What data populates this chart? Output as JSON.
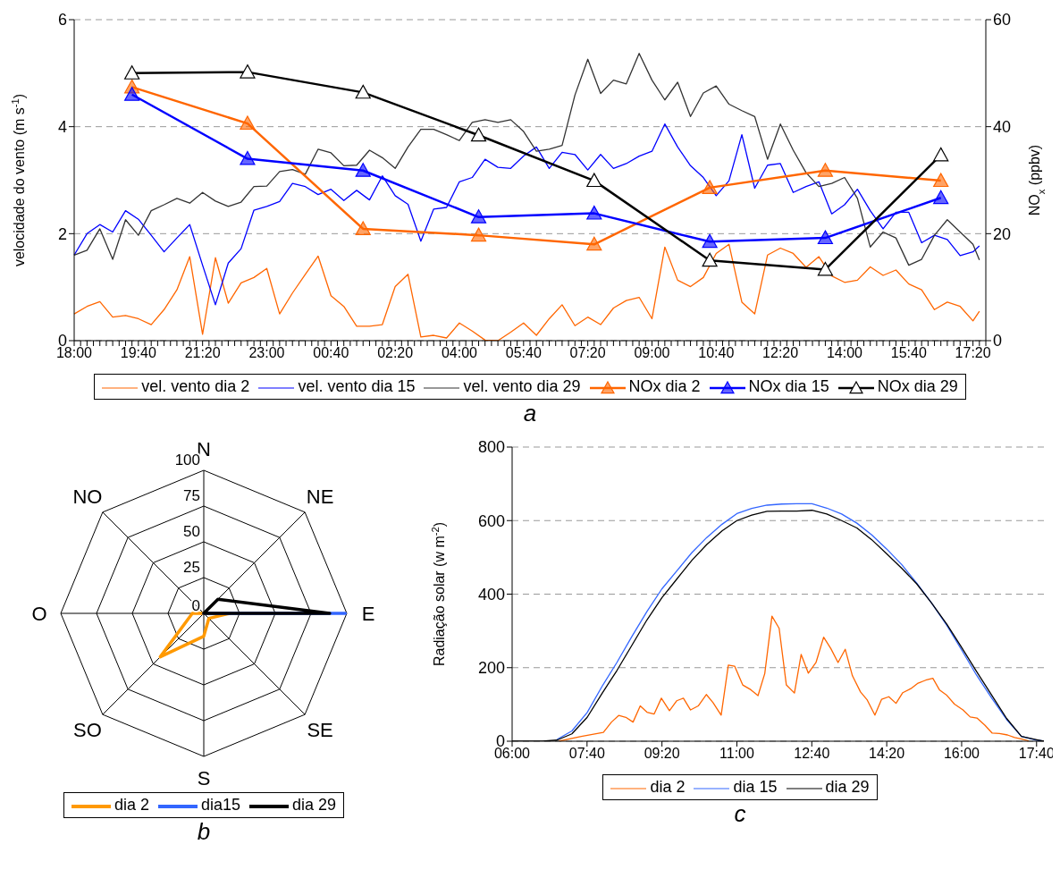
{
  "chart_data": [
    {
      "type": "line",
      "ylabel": "velocidade do vento (m s$^{-1}$)",
      "y2label": "NO$_{x}$ (ppbv)",
      "annotations": [
        "a"
      ],
      "categories": [
        "18:00",
        null,
        null,
        null,
        null,
        null,
        null,
        null,
        null,
        null,
        "19:40",
        null,
        null,
        null,
        null,
        null,
        null,
        null,
        null,
        null,
        "21:20",
        null,
        null,
        null,
        null,
        null,
        null,
        null,
        null,
        null,
        "23:00",
        null,
        null,
        null,
        null,
        null,
        null,
        null,
        null,
        null,
        "00:40",
        null,
        null,
        null,
        null,
        null,
        null,
        null,
        null,
        null,
        "02:20",
        null,
        null,
        null,
        null,
        null,
        null,
        null,
        null,
        null,
        "04:00",
        null,
        null,
        null,
        null,
        null,
        null,
        null,
        null,
        null,
        "05:40",
        null,
        null,
        null,
        null,
        null,
        null,
        null,
        null,
        null,
        "07:20",
        null,
        null,
        null,
        null,
        null,
        null,
        null,
        null,
        null,
        "09:00",
        null,
        null,
        null,
        null,
        null,
        null,
        null,
        null,
        null,
        "10:40",
        null,
        null,
        null,
        null,
        null,
        null,
        null,
        null,
        null,
        "12:20",
        null,
        null,
        null,
        null,
        null,
        null,
        null,
        null,
        null,
        "14:00",
        null,
        null,
        null,
        null,
        null,
        null,
        null,
        null,
        null,
        "15:40",
        null,
        null,
        null,
        null,
        null,
        null,
        null,
        null,
        null,
        "17:20",
        null,
        null
      ],
      "series": [
        {
          "name": "vel. vento dia 2",
          "color": "#ff6600",
          "values": [
            0.5,
            null,
            0.64,
            null,
            0.73,
            null,
            0.44,
            null,
            0.47,
            null,
            0.41,
            null,
            0.3,
            null,
            0.58,
            null,
            0.95,
            null,
            1.57,
            null,
            0.12,
            null,
            1.55,
            null,
            0.7,
            null,
            1.08,
            null,
            1.18,
            null,
            1.35,
            null,
            0.5,
            null,
            0.89,
            null,
            1.24,
            null,
            1.58,
            null,
            0.84,
            null,
            0.64,
            null,
            0.27,
            null,
            0.27,
            null,
            0.3,
            null,
            1.01,
            null,
            1.24,
            null,
            0.07,
            null,
            0.1,
            null,
            0.05,
            null,
            0.33,
            null,
            0.18,
            null,
            0.01,
            null,
            0,
            null,
            0.16,
            null,
            0.33,
            null,
            0.1,
            null,
            0.41,
            null,
            0.67,
            null,
            0.28,
            null,
            0.44,
            null,
            0.3,
            null,
            0.61,
            null,
            0.75,
            null,
            0.81,
            null,
            0.41,
            null,
            1.75,
            null,
            1.13,
            null,
            1.01,
            null,
            1.18,
            null,
            1.63,
            null,
            1.8,
            null,
            0.72,
            null,
            0.5,
            null,
            1.6,
            null,
            1.73,
            null,
            1.63,
            null,
            1.37,
            null,
            1.57,
            null,
            1.21,
            null,
            1.09,
            null,
            1.13,
            null,
            1.38,
            null,
            1.22,
            null,
            1.32,
            null,
            1.06,
            null,
            0.95,
            null,
            0.58,
            null,
            0.72,
            null,
            0.64,
            null,
            0.37,
            0.55,
            null
          ]
        },
        {
          "name": "vel. vento dia 15",
          "color": "#0000ff",
          "values": [
            1.6,
            null,
            2,
            null,
            2.17,
            null,
            2.03,
            null,
            2.43,
            null,
            2.27,
            null,
            1.97,
            null,
            1.66,
            null,
            1.92,
            null,
            2.17,
            null,
            1.41,
            null,
            0.67,
            null,
            1.45,
            null,
            1.72,
            null,
            2.44,
            null,
            2.51,
            null,
            2.6,
            null,
            2.94,
            null,
            2.88,
            null,
            2.73,
            null,
            2.83,
            null,
            2.62,
            null,
            2.81,
            null,
            2.63,
            null,
            3.08,
            null,
            2.71,
            null,
            2.55,
            null,
            1.86,
            null,
            2.46,
            null,
            2.49,
            null,
            2.97,
            null,
            3.05,
            null,
            3.39,
            null,
            3.24,
            null,
            3.22,
            null,
            3.45,
            null,
            3.62,
            null,
            3.22,
            null,
            3.52,
            null,
            3.48,
            null,
            3.19,
            null,
            3.48,
            null,
            3.22,
            null,
            3.31,
            null,
            3.45,
            null,
            3.54,
            null,
            4.05,
            null,
            3.62,
            null,
            3.27,
            null,
            3.05,
            null,
            2.71,
            null,
            2.99,
            null,
            3.85,
            null,
            2.85,
            null,
            3.28,
            null,
            3.31,
            null,
            2.77,
            null,
            2.88,
            null,
            2.97,
            null,
            2.37,
            null,
            2.54,
            null,
            2.83,
            null,
            2.43,
            null,
            2.09,
            null,
            2.4,
            null,
            2.4,
            null,
            1.83,
            null,
            1.97,
            null,
            1.89,
            null,
            1.59,
            null,
            1.66,
            1.77,
            null
          ]
        },
        {
          "name": "vel. vento dia 29",
          "color": "#333333",
          "values": [
            1.6,
            null,
            1.69,
            null,
            2.09,
            null,
            1.52,
            null,
            2.26,
            null,
            1.97,
            null,
            2.43,
            null,
            2.54,
            null,
            2.66,
            null,
            2.57,
            null,
            2.77,
            null,
            2.61,
            null,
            2.51,
            null,
            2.59,
            null,
            2.88,
            null,
            2.89,
            null,
            3.16,
            null,
            3.2,
            null,
            3.11,
            null,
            3.58,
            null,
            3.51,
            null,
            3.27,
            null,
            3.28,
            null,
            3.56,
            null,
            3.42,
            null,
            3.22,
            null,
            3.62,
            null,
            3.95,
            null,
            3.95,
            null,
            3.85,
            null,
            3.74,
            null,
            4.08,
            null,
            4.13,
            null,
            4.08,
            null,
            4.13,
            null,
            3.91,
            null,
            3.54,
            null,
            3.58,
            null,
            3.65,
            null,
            4.59,
            null,
            5.26,
            null,
            4.62,
            null,
            4.87,
            null,
            4.8,
            null,
            5.37,
            null,
            4.87,
            null,
            4.5,
            null,
            4.83,
            null,
            4.19,
            null,
            4.63,
            null,
            4.76,
            null,
            4.42,
            null,
            4.3,
            null,
            4.19,
            null,
            3.39,
            null,
            4.05,
            null,
            3.56,
            null,
            3.14,
            null,
            2.88,
            null,
            2.94,
            null,
            3.05,
            null,
            2.66,
            null,
            1.75,
            null,
            2.03,
            null,
            1.92,
            null,
            1.41,
            null,
            1.52,
            null,
            1.97,
            null,
            2.26,
            null,
            2.03,
            null,
            1.8,
            1.51,
            null
          ]
        },
        {
          "name": "NOx dia 2",
          "color": "#ff6600",
          "axis": "y2",
          "marker": "triangle",
          "values": [
            null,
            null,
            null,
            null,
            null,
            null,
            null,
            null,
            null,
            47.4,
            null,
            null,
            null,
            null,
            null,
            null,
            null,
            null,
            null,
            null,
            null,
            null,
            null,
            null,
            null,
            null,
            null,
            40.6,
            null,
            null,
            null,
            null,
            null,
            null,
            null,
            null,
            null,
            null,
            null,
            null,
            null,
            null,
            null,
            null,
            null,
            20.9,
            null,
            null,
            null,
            null,
            null,
            null,
            null,
            null,
            null,
            null,
            null,
            null,
            null,
            null,
            null,
            null,
            null,
            19.7,
            null,
            null,
            null,
            null,
            null,
            null,
            null,
            null,
            null,
            null,
            null,
            null,
            null,
            null,
            null,
            null,
            null,
            18,
            null,
            null,
            null,
            null,
            null,
            null,
            null,
            null,
            null,
            null,
            null,
            null,
            null,
            null,
            null,
            null,
            null,
            28.6,
            null,
            null,
            null,
            null,
            null,
            null,
            null,
            null,
            null,
            null,
            null,
            null,
            null,
            null,
            null,
            null,
            null,
            31.8,
            null,
            null,
            null,
            null,
            null,
            null,
            null,
            null,
            null,
            null,
            null,
            null,
            null,
            null,
            null,
            null,
            null,
            29.9,
            null,
            null,
            null,
            null,
            null,
            null,
            null
          ]
        },
        {
          "name": "NOx dia 15",
          "color": "#0000ff",
          "axis": "y2",
          "marker": "triangle",
          "values": [
            null,
            null,
            null,
            null,
            null,
            null,
            null,
            null,
            null,
            46,
            null,
            null,
            null,
            null,
            null,
            null,
            null,
            null,
            null,
            null,
            null,
            null,
            null,
            null,
            null,
            null,
            null,
            34,
            null,
            null,
            null,
            null,
            null,
            null,
            null,
            null,
            null,
            null,
            null,
            null,
            null,
            null,
            null,
            null,
            null,
            31.8,
            null,
            null,
            null,
            null,
            null,
            null,
            null,
            null,
            null,
            null,
            null,
            null,
            null,
            null,
            null,
            null,
            null,
            23.1,
            null,
            null,
            null,
            null,
            null,
            null,
            null,
            null,
            null,
            null,
            null,
            null,
            null,
            null,
            null,
            null,
            null,
            23.8,
            null,
            null,
            null,
            null,
            null,
            null,
            null,
            null,
            null,
            null,
            null,
            null,
            null,
            null,
            null,
            null,
            null,
            18.5,
            null,
            null,
            null,
            null,
            null,
            null,
            null,
            null,
            null,
            null,
            null,
            null,
            null,
            null,
            null,
            null,
            null,
            19.2,
            null,
            null,
            null,
            null,
            null,
            null,
            null,
            null,
            null,
            null,
            null,
            null,
            null,
            null,
            null,
            null,
            null,
            26.7,
            null,
            null,
            null,
            null,
            null,
            null,
            null
          ]
        },
        {
          "name": "NOx dia 29",
          "color": "#000000",
          "axis": "y2",
          "marker": "triangle",
          "values": [
            null,
            null,
            null,
            null,
            null,
            null,
            null,
            null,
            null,
            50,
            null,
            null,
            null,
            null,
            null,
            null,
            null,
            null,
            null,
            null,
            null,
            null,
            null,
            null,
            null,
            null,
            null,
            50.2,
            null,
            null,
            null,
            null,
            null,
            null,
            null,
            null,
            null,
            null,
            null,
            null,
            null,
            null,
            null,
            null,
            null,
            46.4,
            null,
            null,
            null,
            null,
            null,
            null,
            null,
            null,
            null,
            null,
            null,
            null,
            null,
            null,
            null,
            null,
            null,
            38.4,
            null,
            null,
            null,
            null,
            null,
            null,
            null,
            null,
            null,
            null,
            null,
            null,
            null,
            null,
            null,
            null,
            null,
            29.9,
            null,
            null,
            null,
            null,
            null,
            null,
            null,
            null,
            null,
            null,
            null,
            null,
            null,
            null,
            null,
            null,
            null,
            15,
            null,
            null,
            null,
            null,
            null,
            null,
            null,
            null,
            null,
            null,
            null,
            null,
            null,
            null,
            null,
            null,
            null,
            13.3,
            null,
            null,
            null,
            null,
            null,
            null,
            null,
            null,
            null,
            null,
            null,
            null,
            null,
            null,
            null,
            null,
            null,
            34.7,
            null,
            null,
            null,
            null,
            null,
            null,
            null
          ]
        }
      ],
      "ylim": [
        0,
        6
      ],
      "yticks": [
        0,
        2,
        4,
        6
      ],
      "y2lim": [
        0,
        60
      ],
      "y2ticks": [
        0,
        20,
        40,
        60
      ],
      "grid": "y",
      "legend": "bottom"
    },
    {
      "type": "radar",
      "annotations": [
        "b"
      ],
      "categories": [
        "N",
        "NE",
        "E",
        "SE",
        "S",
        "SO",
        "O",
        "NO"
      ],
      "series": [
        {
          "name": "dia 2",
          "color": "#ff9900",
          "values": [
            0,
            0,
            18,
            5,
            16,
            43,
            8,
            0
          ]
        },
        {
          "name": "dia15",
          "color": "#3366ff",
          "values": [
            0,
            0,
            99,
            0,
            0,
            0,
            0,
            0
          ]
        },
        {
          "name": "dia 29",
          "color": "#000000",
          "values": [
            0,
            14,
            88,
            0,
            0,
            0,
            0,
            0
          ]
        }
      ],
      "ylim": [
        0,
        100
      ],
      "yticks": [
        0,
        25,
        50,
        75,
        100
      ],
      "grid": true,
      "legend": "bottom"
    },
    {
      "type": "line",
      "ylabel": "Radiação solar (w m$^{-2}$)",
      "annotations": [
        "c"
      ],
      "x": [
        6,
        6.33,
        6.67,
        7,
        7.33,
        7.67,
        8,
        8.33,
        8.67,
        9,
        9.33,
        9.67,
        10,
        10.33,
        10.67,
        11,
        11.33,
        11.67,
        12,
        12.33,
        12.67,
        13,
        13.33,
        13.67,
        14,
        14.33,
        14.67,
        15,
        15.33,
        15.67,
        16,
        16.33,
        16.67,
        17,
        17.33,
        17.67,
        17.83
      ],
      "series": [
        {
          "name": "dia 2",
          "color": "#ff6600",
          "x": [
            7.04,
            7.54,
            8.03,
            8.21,
            8.37,
            8.53,
            8.69,
            8.85,
            9,
            9.16,
            9.32,
            9.5,
            9.66,
            9.81,
            9.97,
            10.14,
            10.32,
            10.47,
            10.65,
            10.81,
            10.95,
            11.13,
            11.31,
            11.47,
            11.62,
            11.78,
            11.94,
            12.1,
            12.28,
            12.43,
            12.59,
            12.76,
            12.93,
            13.09,
            13.25,
            13.41,
            13.57,
            13.75,
            13.9,
            14.07,
            14.22,
            14.38,
            14.54,
            14.69,
            14.87,
            15.03,
            15.2,
            15.36,
            15.51,
            15.66,
            15.84,
            16.03,
            16.19,
            16.34,
            16.52,
            16.68,
            16.84,
            17.02,
            17.18,
            17.34,
            17.49
          ],
          "values": [
            0,
            13,
            24,
            52,
            70,
            65,
            52,
            96,
            79,
            74,
            117,
            83,
            110,
            117,
            85,
            96,
            127,
            105,
            71,
            207,
            204,
            153,
            140,
            124,
            184,
            340,
            307,
            153,
            131,
            236,
            185,
            214,
            283,
            252,
            214,
            250,
            178,
            134,
            112,
            71,
            114,
            121,
            103,
            132,
            143,
            158,
            166,
            171,
            139,
            126,
            101,
            85,
            66,
            63,
            43,
            22,
            21,
            17,
            10,
            6,
            1
          ]
        },
        {
          "name": "dia 15",
          "color": "#3366ff",
          "values": [
            null,
            null,
            null,
            5,
            28,
            78,
            149,
            214,
            286,
            353,
            414,
            464,
            513,
            554,
            590,
            619,
            633,
            642,
            645,
            646,
            646,
            634,
            618,
            593,
            561,
            523,
            480,
            430,
            376,
            315,
            248,
            180,
            117,
            59,
            13,
            3,
            0
          ]
        },
        {
          "name": "dia 29",
          "color": "#000000",
          "values": [
            0,
            0,
            0,
            3,
            20,
            65,
            130,
            192,
            262,
            330,
            390,
            442,
            492,
            535,
            572,
            600,
            615,
            625,
            626,
            626,
            628,
            618,
            600,
            580,
            548,
            510,
            470,
            428,
            376,
            318,
            255,
            190,
            125,
            62,
            13,
            4,
            0
          ]
        }
      ],
      "xlim": [
        6,
        17.83
      ],
      "xticks": [
        {
          "value": 6,
          "label": "06:00"
        },
        {
          "value": 7.6667,
          "label": "07:40"
        },
        {
          "value": 9.3333,
          "label": "09:20"
        },
        {
          "value": 11,
          "label": "11:00"
        },
        {
          "value": 12.6667,
          "label": "12:40"
        },
        {
          "value": 14.3333,
          "label": "14:20"
        },
        {
          "value": 16,
          "label": "16:00"
        },
        {
          "value": 17.6667,
          "label": "17:40"
        }
      ],
      "ylim": [
        0,
        800
      ],
      "yticks": [
        0,
        200,
        400,
        600,
        800
      ],
      "grid": "y",
      "legend": "bottom"
    }
  ]
}
